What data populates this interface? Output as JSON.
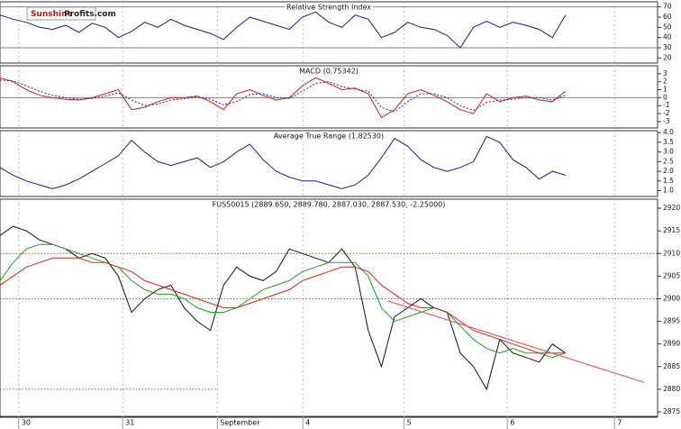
{
  "logo": {
    "brand": "Sunshine",
    "suffix": "Profits.com"
  },
  "chart_data": [
    {
      "type": "line",
      "title": "Relative Strength Index",
      "x": [
        0,
        2,
        4,
        6,
        8,
        10,
        12,
        14,
        16,
        18,
        20,
        22,
        24,
        26,
        28,
        30,
        32,
        34,
        36,
        38,
        40,
        42,
        44,
        46,
        48,
        50,
        52,
        54,
        56,
        58,
        60,
        62,
        64,
        66,
        68,
        70,
        72,
        74,
        76,
        78,
        80,
        82,
        84,
        86
      ],
      "xlim": [
        0,
        100
      ],
      "ylim": [
        15,
        75
      ],
      "yticks": [
        20,
        30,
        40,
        50,
        60,
        70
      ],
      "reference_lines": [
        {
          "y": 30,
          "color": "#808080"
        },
        {
          "y": 70,
          "color": "#808080"
        }
      ],
      "series": [
        {
          "name": "RSI",
          "color": "#1a1a8c",
          "style": "solid",
          "values": [
            62,
            58,
            55,
            50,
            48,
            52,
            45,
            54,
            50,
            40,
            46,
            55,
            50,
            58,
            52,
            48,
            44,
            38,
            50,
            60,
            56,
            52,
            48,
            60,
            65,
            55,
            50,
            62,
            58,
            40,
            45,
            55,
            50,
            48,
            42,
            30,
            50,
            56,
            50,
            55,
            52,
            48,
            40,
            62
          ]
        }
      ]
    },
    {
      "type": "line",
      "title": "MACD (0.75342)",
      "x": [
        0,
        2,
        4,
        6,
        8,
        10,
        12,
        14,
        16,
        18,
        20,
        22,
        24,
        26,
        28,
        30,
        32,
        34,
        36,
        38,
        40,
        42,
        44,
        46,
        48,
        50,
        52,
        54,
        56,
        58,
        60,
        62,
        64,
        66,
        68,
        70,
        72,
        74,
        76,
        78,
        80,
        82,
        84,
        86
      ],
      "xlim": [
        0,
        100
      ],
      "ylim": [
        -3.8,
        4
      ],
      "yticks": [
        -3,
        -2,
        -1,
        0,
        1,
        2,
        3
      ],
      "reference_lines": [
        {
          "y": 0,
          "color": "#808080"
        }
      ],
      "series": [
        {
          "name": "MACD",
          "color": "#d02020",
          "style": "solid",
          "values": [
            2.5,
            2,
            1,
            0.3,
            0,
            -0.2,
            -0.3,
            0,
            0.5,
            1,
            -1.5,
            -1.2,
            -0.5,
            0,
            0,
            0.2,
            -0.5,
            -1.5,
            0.5,
            1,
            0.3,
            -0.3,
            0,
            1.5,
            2.5,
            1.8,
            1,
            1.2,
            0.5,
            -2.5,
            -1.5,
            0.5,
            1,
            0.3,
            -0.5,
            -1.5,
            -2,
            0.5,
            -0.5,
            0,
            0.2,
            -0.3,
            -0.5,
            0.8
          ]
        },
        {
          "name": "Signal",
          "color": "#2020c0",
          "style": "dotted",
          "values": [
            2.2,
            2.1,
            1.5,
            0.8,
            0.3,
            0,
            -0.2,
            -0.1,
            0.2,
            0.6,
            -0.3,
            -1,
            -0.8,
            -0.3,
            -0.1,
            0.1,
            -0.2,
            -0.9,
            -0.5,
            0.4,
            0.5,
            0,
            -0.1,
            0.8,
            1.8,
            2,
            1.4,
            1.1,
            0.8,
            -1.2,
            -1.8,
            -0.5,
            0.5,
            0.5,
            0,
            -1,
            -1.6,
            -0.6,
            -0.3,
            -0.2,
            0,
            0,
            -0.3,
            0.3
          ]
        }
      ]
    },
    {
      "type": "line",
      "title": "Average True Range (1.82530)",
      "x": [
        0,
        2,
        4,
        6,
        8,
        10,
        12,
        14,
        16,
        18,
        20,
        22,
        24,
        26,
        28,
        30,
        32,
        34,
        36,
        38,
        40,
        42,
        44,
        46,
        48,
        50,
        52,
        54,
        56,
        58,
        60,
        62,
        64,
        66,
        68,
        70,
        72,
        74,
        76,
        78,
        80,
        82,
        84,
        86
      ],
      "xlim": [
        0,
        100
      ],
      "ylim": [
        0.7,
        4.1
      ],
      "yticks": [
        {
          "value": 1,
          "label": "1.0"
        },
        1.5,
        {
          "value": 2,
          "label": "2.0"
        },
        2.5,
        {
          "value": 3,
          "label": "3.0"
        },
        3.5,
        {
          "value": 4,
          "label": "4.0"
        }
      ],
      "series": [
        {
          "name": "ATR",
          "color": "#1a1a8c",
          "style": "solid",
          "values": [
            2.2,
            1.8,
            1.5,
            1.3,
            1.1,
            1.3,
            1.6,
            2,
            2.4,
            2.8,
            3.6,
            3,
            2.5,
            2.3,
            2.5,
            2.7,
            2.2,
            2.5,
            3,
            3.4,
            2.6,
            2,
            1.7,
            1.5,
            1.5,
            1.3,
            1.1,
            1.3,
            1.8,
            2.7,
            3.7,
            3.3,
            2.6,
            2.2,
            2,
            2.2,
            2.5,
            3.8,
            3.5,
            2.6,
            2.2,
            1.6,
            2,
            1.8
          ]
        }
      ]
    },
    {
      "type": "line",
      "title": "FUS50015 (2889.650, 2889.780, 2887.030, 2887.530, -2.25000)",
      "x": [
        0,
        2,
        4,
        6,
        8,
        10,
        12,
        14,
        16,
        18,
        20,
        22,
        24,
        26,
        28,
        30,
        32,
        34,
        36,
        38,
        40,
        42,
        44,
        46,
        48,
        50,
        52,
        54,
        56,
        58,
        60,
        62,
        64,
        66,
        68,
        70,
        72,
        74,
        76,
        78,
        80,
        82,
        84,
        86
      ],
      "xlim": [
        0,
        100
      ],
      "ylim": [
        2874,
        2922
      ],
      "yticks": [
        2875,
        2880,
        2885,
        2890,
        2895,
        2900,
        2905,
        2910,
        2915,
        2920
      ],
      "xticks": [
        {
          "value": 3.4,
          "label": "30"
        },
        {
          "value": 19.2,
          "label": "31"
        },
        {
          "value": 33.6,
          "label": "September"
        },
        {
          "value": 46.6,
          "label": "4"
        },
        {
          "value": 62,
          "label": "5"
        },
        {
          "value": 77.7,
          "label": "6"
        },
        {
          "value": 94,
          "label": "7"
        }
      ],
      "levels": [
        {
          "y": 2910,
          "x": [
            0,
            100
          ],
          "color": "#d04020"
        },
        {
          "y": 2900,
          "x": [
            0,
            100
          ],
          "color": "#d04020"
        },
        {
          "y": 2880,
          "x": [
            0,
            33
          ],
          "color": "#d04020"
        }
      ],
      "trendline": {
        "x": [
          59,
          98
        ],
        "y": [
          2899.5,
          2881.5
        ],
        "color": "#e06060"
      },
      "series": [
        {
          "name": "Price",
          "color": "#111111",
          "style": "solid",
          "values": [
            2914,
            2916,
            2915,
            2913,
            2912,
            2911,
            2909,
            2910,
            2909,
            2905,
            2897,
            2900,
            2902,
            2903,
            2898,
            2895,
            2893,
            2903,
            2907,
            2905,
            2904,
            2906,
            2911,
            2910,
            2909,
            2908,
            2911,
            2907,
            2893,
            2885,
            2896,
            2898,
            2900,
            2898,
            2897,
            2888,
            2885,
            2880,
            2891,
            2888,
            2887,
            2886,
            2890,
            2888
          ]
        },
        {
          "name": "Fast MA",
          "color": "#20a020",
          "style": "solid",
          "values": [
            2904,
            2908,
            2911,
            2912,
            2912,
            2911,
            2910,
            2909,
            2908,
            2907,
            2904,
            2902,
            2901,
            2901,
            2900,
            2898,
            2897,
            2897,
            2898,
            2900,
            2902,
            2903,
            2904,
            2906,
            2907,
            2908,
            2908,
            2908,
            2905,
            2898,
            2895,
            2896,
            2897,
            2898,
            2897,
            2894,
            2891,
            2889,
            2888,
            2889,
            2888,
            2888,
            2887,
            2888
          ]
        },
        {
          "name": "Slow MA",
          "color": "#e02020",
          "style": "solid",
          "values": [
            2903,
            2905,
            2907,
            2908,
            2909,
            2909,
            2909,
            2908,
            2908,
            2907,
            2906,
            2904,
            2903,
            2902,
            2901,
            2900,
            2899,
            2898,
            2898,
            2899,
            2900,
            2901,
            2902,
            2904,
            2905,
            2906,
            2907,
            2907,
            2906,
            2903,
            2901,
            2899,
            2898,
            2898,
            2897,
            2895,
            2893,
            2892,
            2891,
            2890,
            2889,
            2888,
            2888,
            2888
          ]
        }
      ]
    }
  ]
}
